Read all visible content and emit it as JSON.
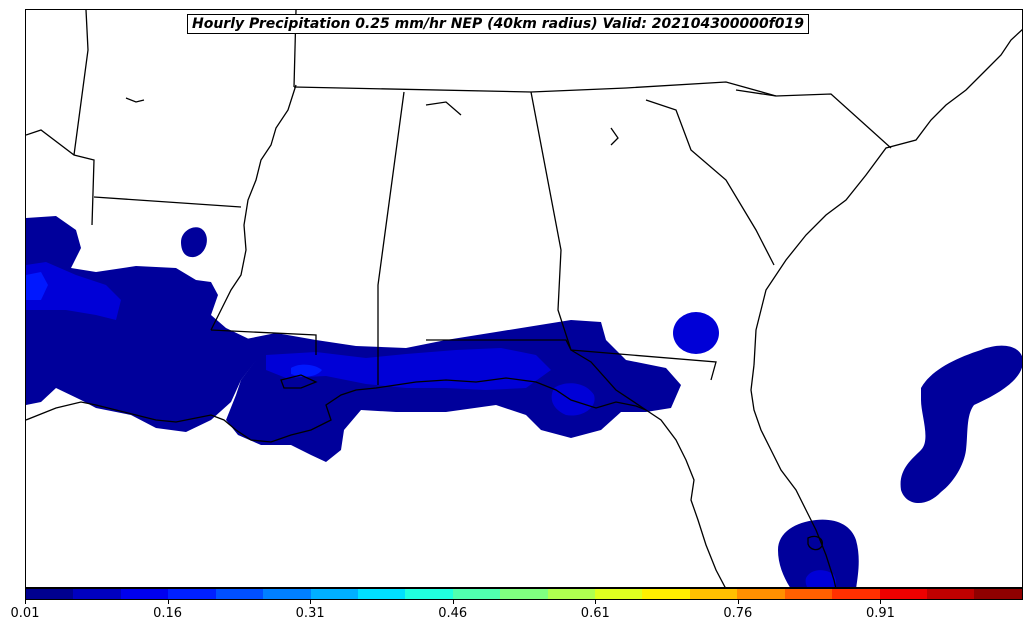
{
  "title": "Hourly Precipitation 0.25 mm/hr NEP (40km radius) Valid: 202104300000f019",
  "colorbar": {
    "colors": [
      "#00008f",
      "#0000bf",
      "#0000ef",
      "#0020ff",
      "#0050ff",
      "#0080ff",
      "#00b0ff",
      "#00e0ff",
      "#20ffdf",
      "#50ffaf",
      "#80ff80",
      "#afff50",
      "#dfff20",
      "#ffef00",
      "#ffc000",
      "#ff9000",
      "#ff6000",
      "#ff3000",
      "#ef0000",
      "#bf0000",
      "#8f0000"
    ],
    "tick_labels": [
      "0.01",
      "0.16",
      "0.31",
      "0.46",
      "0.61",
      "0.76",
      "0.91"
    ],
    "min": 0.01,
    "max": 1.01
  },
  "map": {
    "region": "Southeastern United States and Gulf of Mexico coast",
    "precip_colors": {
      "low": "#00009b",
      "mid": "#0000d7",
      "high": "#0018ff"
    }
  }
}
